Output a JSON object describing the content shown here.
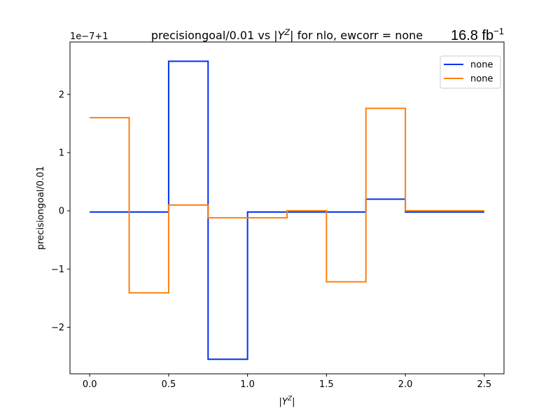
{
  "chart_data": {
    "type": "line",
    "drawstyle": "steps-post",
    "title": "precisiongoal/0.01 vs |Y^Z| for nlo, ewcorr = none",
    "title_parts": {
      "pre": "precisiongoal/0.01 vs |",
      "base": "Y",
      "sup": "Z",
      "post": "| for nlo, ewcorr = none"
    },
    "lumi_label": {
      "text": "16.8 fb",
      "sup": "−1"
    },
    "xlabel": {
      "pre": "|",
      "base": "Y",
      "sup": "Z",
      "post": "|"
    },
    "ylabel": "precisiongoal/0.01",
    "offset_text": "1e−7+1",
    "xlim": [
      -0.125,
      2.625
    ],
    "ylim": [
      -2.8,
      2.9
    ],
    "xticks": [
      0.0,
      0.5,
      1.0,
      1.5,
      2.0,
      2.5
    ],
    "xtick_labels": [
      "0.0",
      "0.5",
      "1.0",
      "1.5",
      "2.0",
      "2.5"
    ],
    "yticks": [
      -2,
      -1,
      0,
      1,
      2
    ],
    "ytick_labels": [
      "−2",
      "−1",
      "0",
      "1",
      "2"
    ],
    "legend_position": "upper right",
    "grid": false,
    "bin_edges": [
      0.0,
      0.25,
      0.5,
      0.75,
      1.0,
      1.25,
      1.5,
      1.75,
      2.0,
      2.25,
      2.5
    ],
    "series": [
      {
        "name": "none",
        "color": "#0033ee",
        "values": [
          -0.02,
          -0.02,
          2.57,
          -2.55,
          -0.02,
          -0.02,
          -0.02,
          0.2,
          -0.02,
          -0.02
        ]
      },
      {
        "name": "none",
        "color": "#ff7f0e",
        "values": [
          1.6,
          -1.41,
          0.1,
          -0.12,
          -0.12,
          0.0,
          -1.22,
          1.76,
          0.0,
          0.0
        ]
      }
    ]
  }
}
